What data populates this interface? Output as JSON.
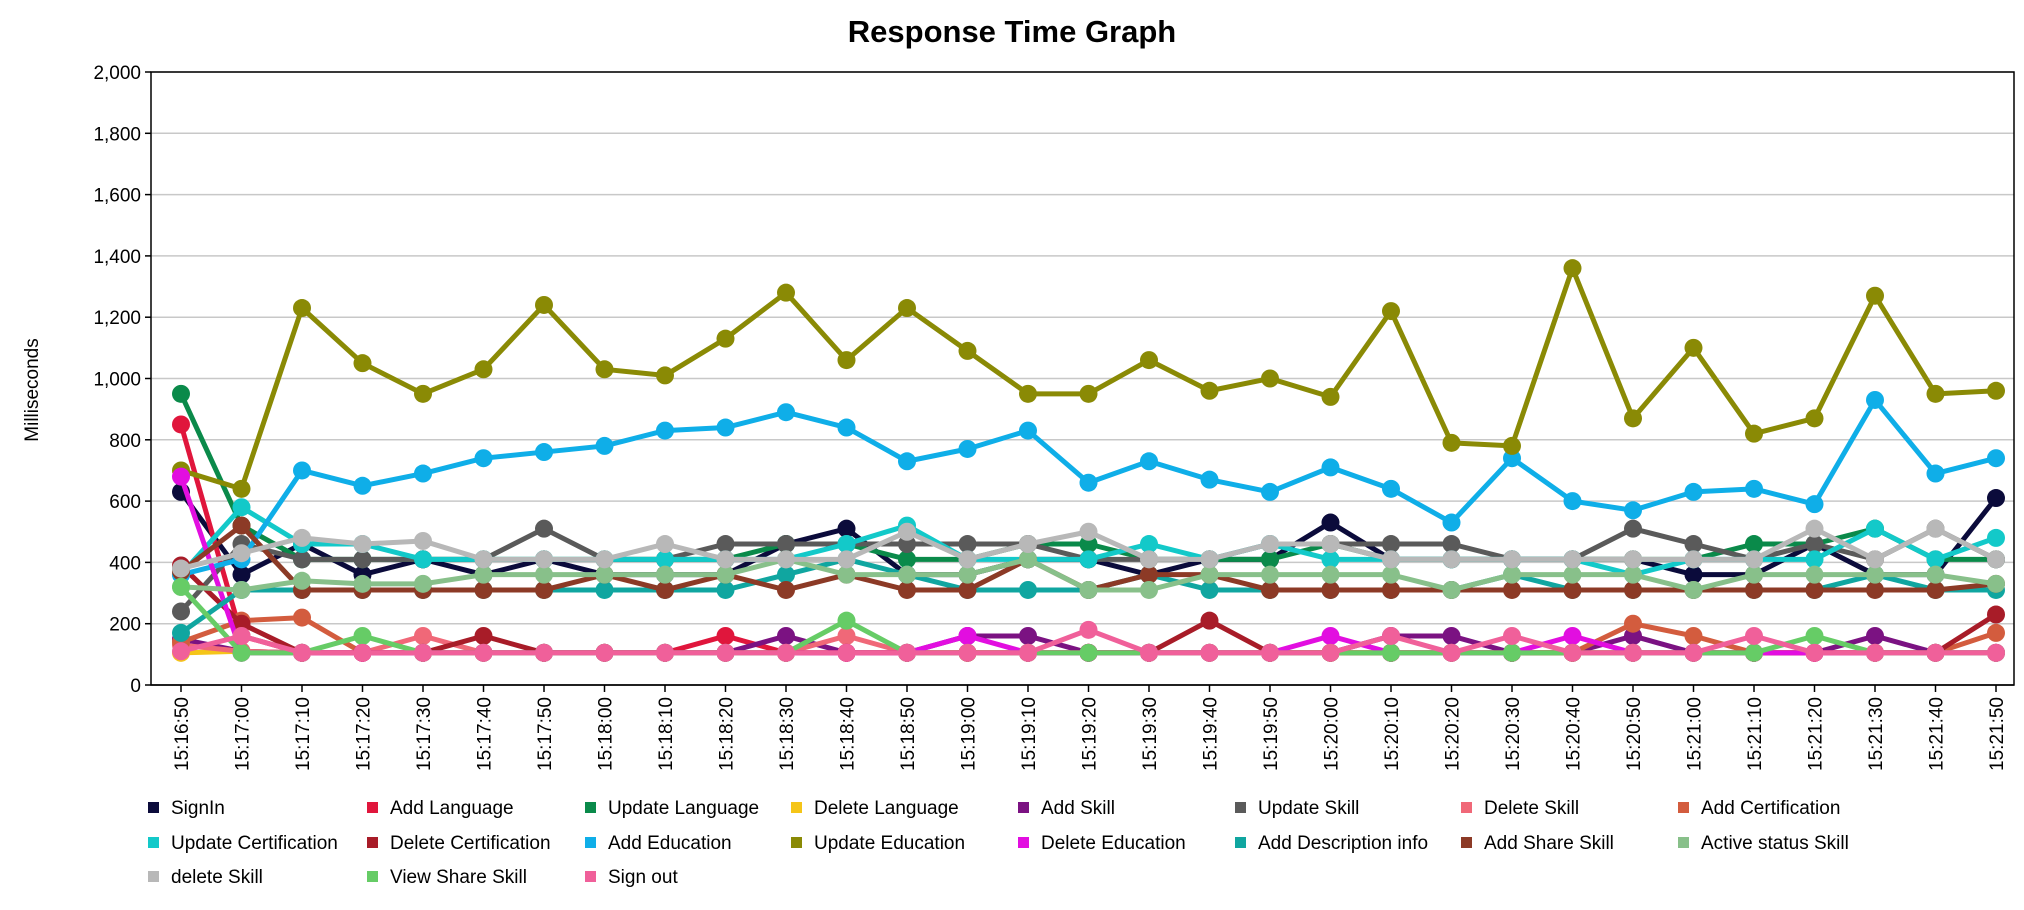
{
  "chart_data": {
    "type": "line",
    "title": "Response Time Graph",
    "xlabel": "",
    "ylabel": "Milliseconds",
    "ylim": [
      0,
      2000
    ],
    "y_ticks": [
      "0",
      "200",
      "400",
      "600",
      "800",
      "1,000",
      "1,200",
      "1,400",
      "1,600",
      "1,800",
      "2,000"
    ],
    "y_tick_values": [
      0,
      200,
      400,
      600,
      800,
      1000,
      1200,
      1400,
      1600,
      1800,
      2000
    ],
    "grid": true,
    "legend_position": "bottom",
    "categories": [
      "15:16:50",
      "15:17:00",
      "15:17:10",
      "15:17:20",
      "15:17:30",
      "15:17:40",
      "15:17:50",
      "15:18:00",
      "15:18:10",
      "15:18:20",
      "15:18:30",
      "15:18:40",
      "15:18:50",
      "15:19:00",
      "15:19:10",
      "15:19:20",
      "15:19:30",
      "15:19:40",
      "15:19:50",
      "15:20:00",
      "15:20:10",
      "15:20:20",
      "15:20:30",
      "15:20:40",
      "15:20:50",
      "15:21:00",
      "15:21:10",
      "15:21:20",
      "15:21:30",
      "15:21:40",
      "15:21:50"
    ],
    "series": [
      {
        "name": "SignIn",
        "color": "#0b0b3b",
        "values": [
          630,
          360,
          460,
          360,
          410,
          360,
          410,
          360,
          360,
          360,
          460,
          510,
          360,
          360,
          410,
          410,
          360,
          410,
          410,
          530,
          410,
          410,
          410,
          410,
          410,
          360,
          360,
          460,
          360,
          360,
          610
        ]
      },
      {
        "name": "Add Language",
        "color": "#e0163c",
        "values": [
          850,
          160,
          105,
          105,
          105,
          105,
          105,
          105,
          105,
          160,
          105,
          105,
          105,
          105,
          105,
          105,
          105,
          105,
          105,
          105,
          105,
          105,
          105,
          105,
          105,
          105,
          105,
          105,
          105,
          105,
          105
        ]
      },
      {
        "name": "Update Language",
        "color": "#0a8a4a",
        "values": [
          950,
          520,
          410,
          410,
          410,
          410,
          410,
          410,
          410,
          410,
          460,
          460,
          410,
          410,
          460,
          460,
          410,
          410,
          410,
          460,
          410,
          410,
          410,
          410,
          410,
          410,
          460,
          460,
          510,
          410,
          410
        ]
      },
      {
        "name": "Delete Language",
        "color": "#f5c518",
        "values": [
          105,
          110,
          105,
          105,
          105,
          105,
          105,
          105,
          105,
          105,
          105,
          105,
          105,
          105,
          105,
          105,
          105,
          105,
          105,
          105,
          105,
          105,
          105,
          105,
          105,
          105,
          105,
          105,
          105,
          105,
          105
        ]
      },
      {
        "name": "Add Skill",
        "color": "#7b1282",
        "values": [
          150,
          110,
          105,
          105,
          105,
          105,
          105,
          105,
          105,
          105,
          160,
          105,
          105,
          160,
          160,
          105,
          105,
          105,
          105,
          105,
          160,
          160,
          105,
          105,
          160,
          105,
          105,
          105,
          160,
          105,
          105
        ]
      },
      {
        "name": "Update Skill",
        "color": "#5a5a5a",
        "values": [
          240,
          460,
          410,
          410,
          410,
          410,
          510,
          410,
          410,
          460,
          460,
          460,
          460,
          460,
          460,
          410,
          410,
          410,
          460,
          460,
          460,
          460,
          410,
          410,
          510,
          460,
          410,
          460,
          410,
          510,
          410
        ]
      },
      {
        "name": "Delete Skill",
        "color": "#f06878",
        "values": [
          130,
          110,
          105,
          105,
          160,
          105,
          105,
          105,
          105,
          105,
          105,
          160,
          105,
          105,
          105,
          105,
          105,
          105,
          105,
          105,
          105,
          105,
          105,
          105,
          105,
          105,
          105,
          105,
          105,
          105,
          105
        ]
      },
      {
        "name": "Add Certification",
        "color": "#d35c3e",
        "values": [
          140,
          210,
          220,
          105,
          105,
          105,
          105,
          105,
          105,
          105,
          105,
          105,
          105,
          105,
          105,
          105,
          105,
          105,
          105,
          105,
          105,
          105,
          105,
          105,
          200,
          160,
          105,
          105,
          105,
          105,
          170
        ]
      },
      {
        "name": "Update Certification",
        "color": "#13c9c9",
        "values": [
          360,
          580,
          460,
          460,
          410,
          410,
          410,
          410,
          410,
          410,
          410,
          460,
          520,
          410,
          410,
          410,
          460,
          410,
          460,
          410,
          410,
          410,
          410,
          410,
          360,
          410,
          410,
          410,
          510,
          410,
          480
        ]
      },
      {
        "name": "Delete Certification",
        "color": "#a81c28",
        "values": [
          390,
          200,
          105,
          105,
          105,
          160,
          105,
          105,
          105,
          105,
          105,
          105,
          105,
          105,
          105,
          105,
          105,
          210,
          105,
          105,
          105,
          105,
          105,
          105,
          105,
          105,
          105,
          105,
          105,
          105,
          230
        ]
      },
      {
        "name": "Add Education",
        "color": "#0faee8",
        "values": [
          360,
          410,
          700,
          650,
          690,
          740,
          760,
          780,
          830,
          840,
          890,
          840,
          730,
          770,
          830,
          660,
          730,
          670,
          630,
          710,
          640,
          530,
          740,
          600,
          570,
          630,
          640,
          590,
          930,
          690,
          740
        ]
      },
      {
        "name": "Update Education",
        "color": "#8a8a05",
        "values": [
          700,
          640,
          1230,
          1050,
          950,
          1030,
          1240,
          1030,
          1010,
          1130,
          1280,
          1060,
          1230,
          1090,
          950,
          950,
          1060,
          960,
          1000,
          940,
          1220,
          790,
          780,
          1360,
          870,
          1100,
          820,
          870,
          1270,
          950,
          960
        ]
      },
      {
        "name": "Delete Education",
        "color": "#e20ee0",
        "values": [
          680,
          105,
          105,
          105,
          105,
          105,
          105,
          105,
          105,
          105,
          105,
          105,
          105,
          160,
          105,
          105,
          105,
          105,
          105,
          160,
          105,
          105,
          105,
          160,
          105,
          105,
          105,
          105,
          105,
          105,
          105
        ]
      },
      {
        "name": "Add Description info",
        "color": "#10a6a0",
        "values": [
          170,
          310,
          310,
          310,
          310,
          310,
          310,
          310,
          310,
          310,
          360,
          410,
          360,
          310,
          310,
          310,
          360,
          310,
          310,
          310,
          310,
          310,
          360,
          310,
          310,
          310,
          310,
          310,
          360,
          310,
          310
        ]
      },
      {
        "name": "Add Share Skill",
        "color": "#8c3a26",
        "values": [
          370,
          520,
          310,
          310,
          310,
          310,
          310,
          360,
          310,
          360,
          310,
          360,
          310,
          310,
          410,
          310,
          360,
          360,
          310,
          310,
          310,
          310,
          310,
          310,
          310,
          310,
          310,
          310,
          310,
          310,
          330
        ]
      },
      {
        "name": "Active status Skill",
        "color": "#88c08a",
        "values": [
          320,
          310,
          340,
          330,
          330,
          360,
          360,
          360,
          360,
          360,
          410,
          360,
          360,
          360,
          410,
          310,
          310,
          360,
          360,
          360,
          360,
          310,
          360,
          360,
          360,
          310,
          360,
          360,
          360,
          360,
          330
        ]
      },
      {
        "name": "delete Skill",
        "color": "#b8b8b8",
        "values": [
          380,
          430,
          480,
          460,
          470,
          410,
          410,
          410,
          460,
          410,
          410,
          410,
          500,
          410,
          460,
          500,
          410,
          410,
          460,
          460,
          410,
          410,
          410,
          410,
          410,
          410,
          410,
          510,
          410,
          510,
          410
        ]
      },
      {
        "name": "View Share Skill",
        "color": "#66cc66",
        "values": [
          320,
          105,
          105,
          160,
          105,
          105,
          105,
          105,
          105,
          105,
          105,
          210,
          105,
          105,
          105,
          105,
          105,
          105,
          105,
          105,
          105,
          105,
          105,
          105,
          105,
          105,
          105,
          160,
          105,
          105,
          105
        ]
      },
      {
        "name": "Sign out",
        "color": "#f0609a",
        "values": [
          110,
          160,
          105,
          105,
          105,
          105,
          105,
          105,
          105,
          105,
          105,
          105,
          105,
          105,
          105,
          180,
          105,
          105,
          105,
          105,
          160,
          105,
          160,
          105,
          105,
          105,
          160,
          105,
          105,
          105,
          105
        ]
      }
    ]
  }
}
